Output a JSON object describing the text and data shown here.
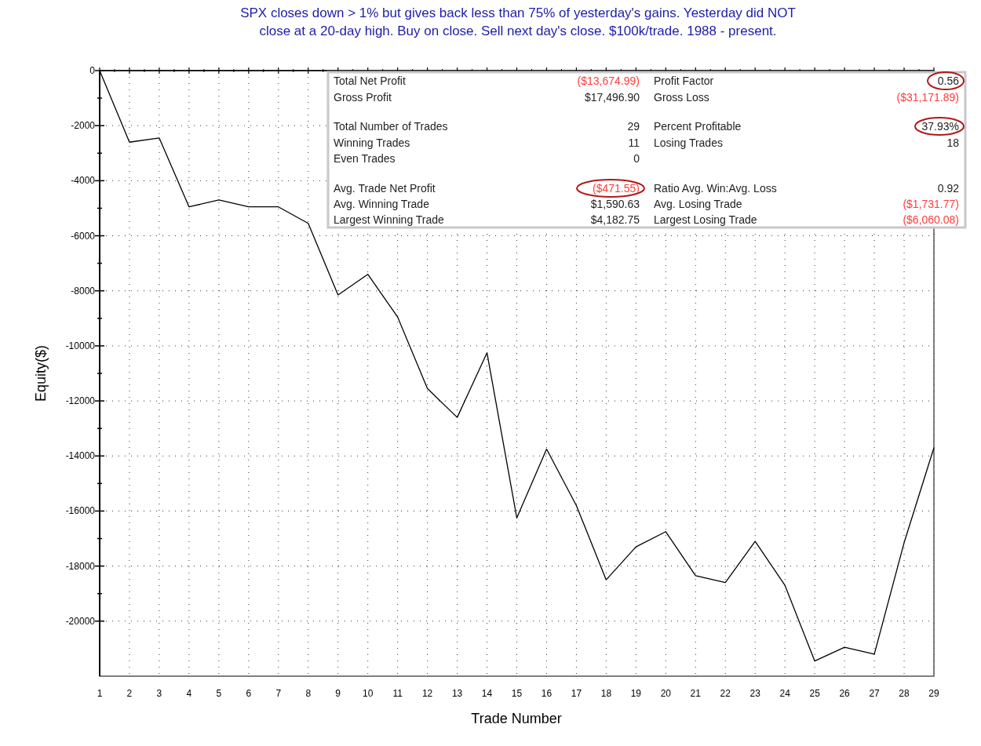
{
  "chart_data": {
    "type": "line",
    "title": "SPX closes down > 1% but gives back less than 75% of yesterday's gains. Yesterday did NOT close at a 20-day high. Buy on close. Sell next day's close. $100k/trade. 1988 - present.",
    "xlabel": "Trade Number",
    "ylabel": "Equity($)",
    "x": [
      1,
      2,
      3,
      4,
      5,
      6,
      7,
      8,
      9,
      10,
      11,
      12,
      13,
      14,
      15,
      16,
      17,
      18,
      19,
      20,
      21,
      22,
      23,
      24,
      25,
      26,
      27,
      28,
      29
    ],
    "series": [
      {
        "color": "#000000",
        "values": [
          0,
          -2600,
          -2450,
          -4950,
          -4700,
          -4950,
          -4950,
          -5550,
          -8150,
          -7400,
          -8950,
          -11550,
          -12600,
          -10250,
          -16250,
          -13750,
          -15800,
          -18500,
          -17300,
          -16750,
          -18350,
          -18600,
          -17100,
          -18700,
          -21450,
          -20950,
          -21200,
          -17150,
          -13700
        ]
      }
    ],
    "xlim": [
      1,
      29
    ],
    "xticks": [
      1,
      2,
      3,
      4,
      5,
      6,
      7,
      8,
      9,
      10,
      11,
      12,
      13,
      14,
      15,
      16,
      17,
      18,
      19,
      20,
      21,
      22,
      23,
      24,
      25,
      26,
      27,
      28,
      29
    ],
    "ylim": [
      -22000,
      0
    ],
    "yticks": [
      0,
      -2000,
      -4000,
      -6000,
      -8000,
      -10000,
      -12000,
      -14000,
      -16000,
      -18000,
      -20000
    ],
    "grid": true,
    "line_style": "solid",
    "marker": "none",
    "annotations": [
      "Total Net Profit",
      "($13,674.99)",
      "Profit Factor",
      "0.56",
      "Gross Profit",
      "$17,496.90",
      "Gross Loss",
      "($31,171.89)",
      "Total Number of Trades",
      "29",
      "Percent Profitable",
      "37.93%",
      "Winning Trades",
      "11",
      "Losing Trades",
      "18",
      "Even Trades",
      "0",
      "Avg. Trade Net Profit",
      "($471.55)",
      "Ratio Avg. Win:Avg. Loss",
      "0.92",
      "Avg. Winning Trade",
      "$1,590.63",
      "Avg. Losing Trade",
      "($1,731.77)",
      "Largest Winning Trade",
      "$4,182.75",
      "Largest Losing Trade",
      "($6,060.08)"
    ]
  }
}
